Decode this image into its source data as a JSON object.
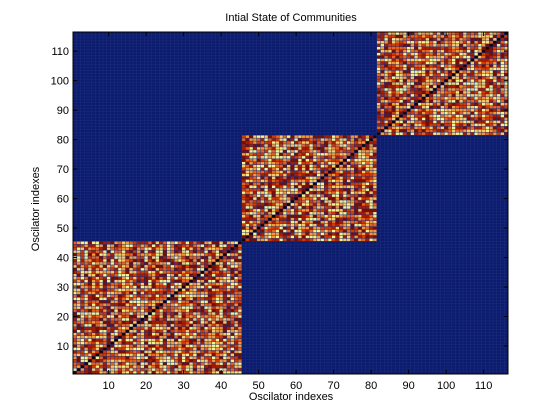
{
  "chart_data": {
    "type": "heatmap",
    "title": "Intial State of Communities",
    "xlabel": "Oscilator indexes",
    "ylabel": "Oscilator indexes",
    "n": 116,
    "xlim": [
      0.5,
      116.5
    ],
    "ylim": [
      0.5,
      116.5
    ],
    "x_ticks": [
      10,
      20,
      30,
      40,
      50,
      60,
      70,
      80,
      90,
      100,
      110
    ],
    "y_ticks": [
      10,
      20,
      30,
      40,
      50,
      60,
      70,
      80,
      90,
      100,
      110
    ],
    "communities": [
      {
        "start": 1,
        "end": 45
      },
      {
        "start": 46,
        "end": 81
      },
      {
        "start": 82,
        "end": 116
      }
    ],
    "background_value": 0,
    "diagonal_value": 0,
    "within_community": "random values",
    "grid": true,
    "colormap": "hot",
    "colors": {
      "background": "#0b1b6e",
      "grid": "#1f2f7c",
      "diagonal": "#1a0000",
      "palette": [
        "#7a0c00",
        "#a81c00",
        "#d23a00",
        "#e8641c",
        "#f29a3a",
        "#f6c868",
        "#f5ef8c"
      ]
    }
  }
}
